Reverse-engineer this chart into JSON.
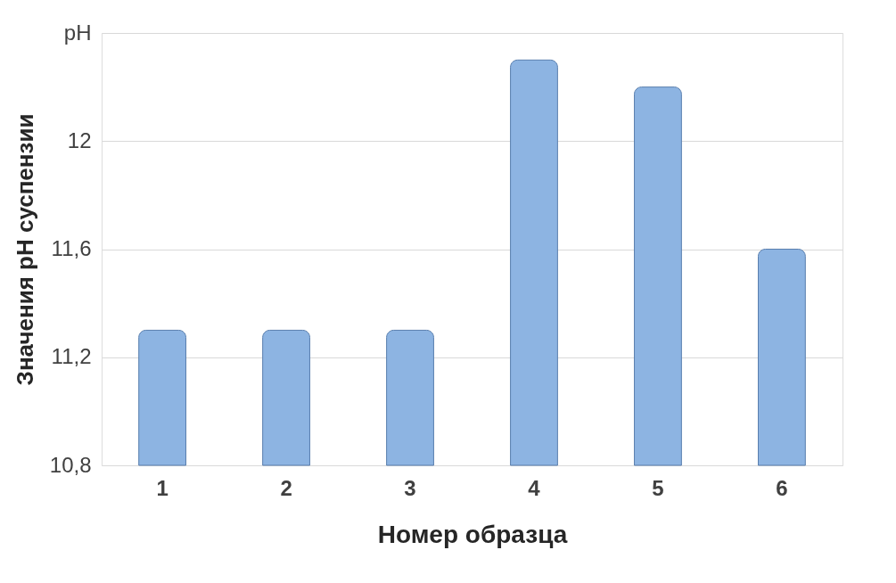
{
  "chart_data": {
    "type": "bar",
    "xlabel": "Номер образца",
    "ylabel": "Значения pH суспензии",
    "categories": [
      "1",
      "2",
      "3",
      "4",
      "5",
      "6"
    ],
    "values": [
      11.3,
      11.3,
      11.3,
      12.3,
      12.2,
      11.6
    ],
    "color": "#8db4e2",
    "ylim": [
      10.8,
      12.4
    ],
    "yticks": [
      {
        "value": 10.8,
        "label": "10,8"
      },
      {
        "value": 11.2,
        "label": "11,2"
      },
      {
        "value": 11.6,
        "label": "11,6"
      },
      12,
      {
        "value": 12.4,
        "label": "pH"
      }
    ],
    "grid": "y"
  }
}
